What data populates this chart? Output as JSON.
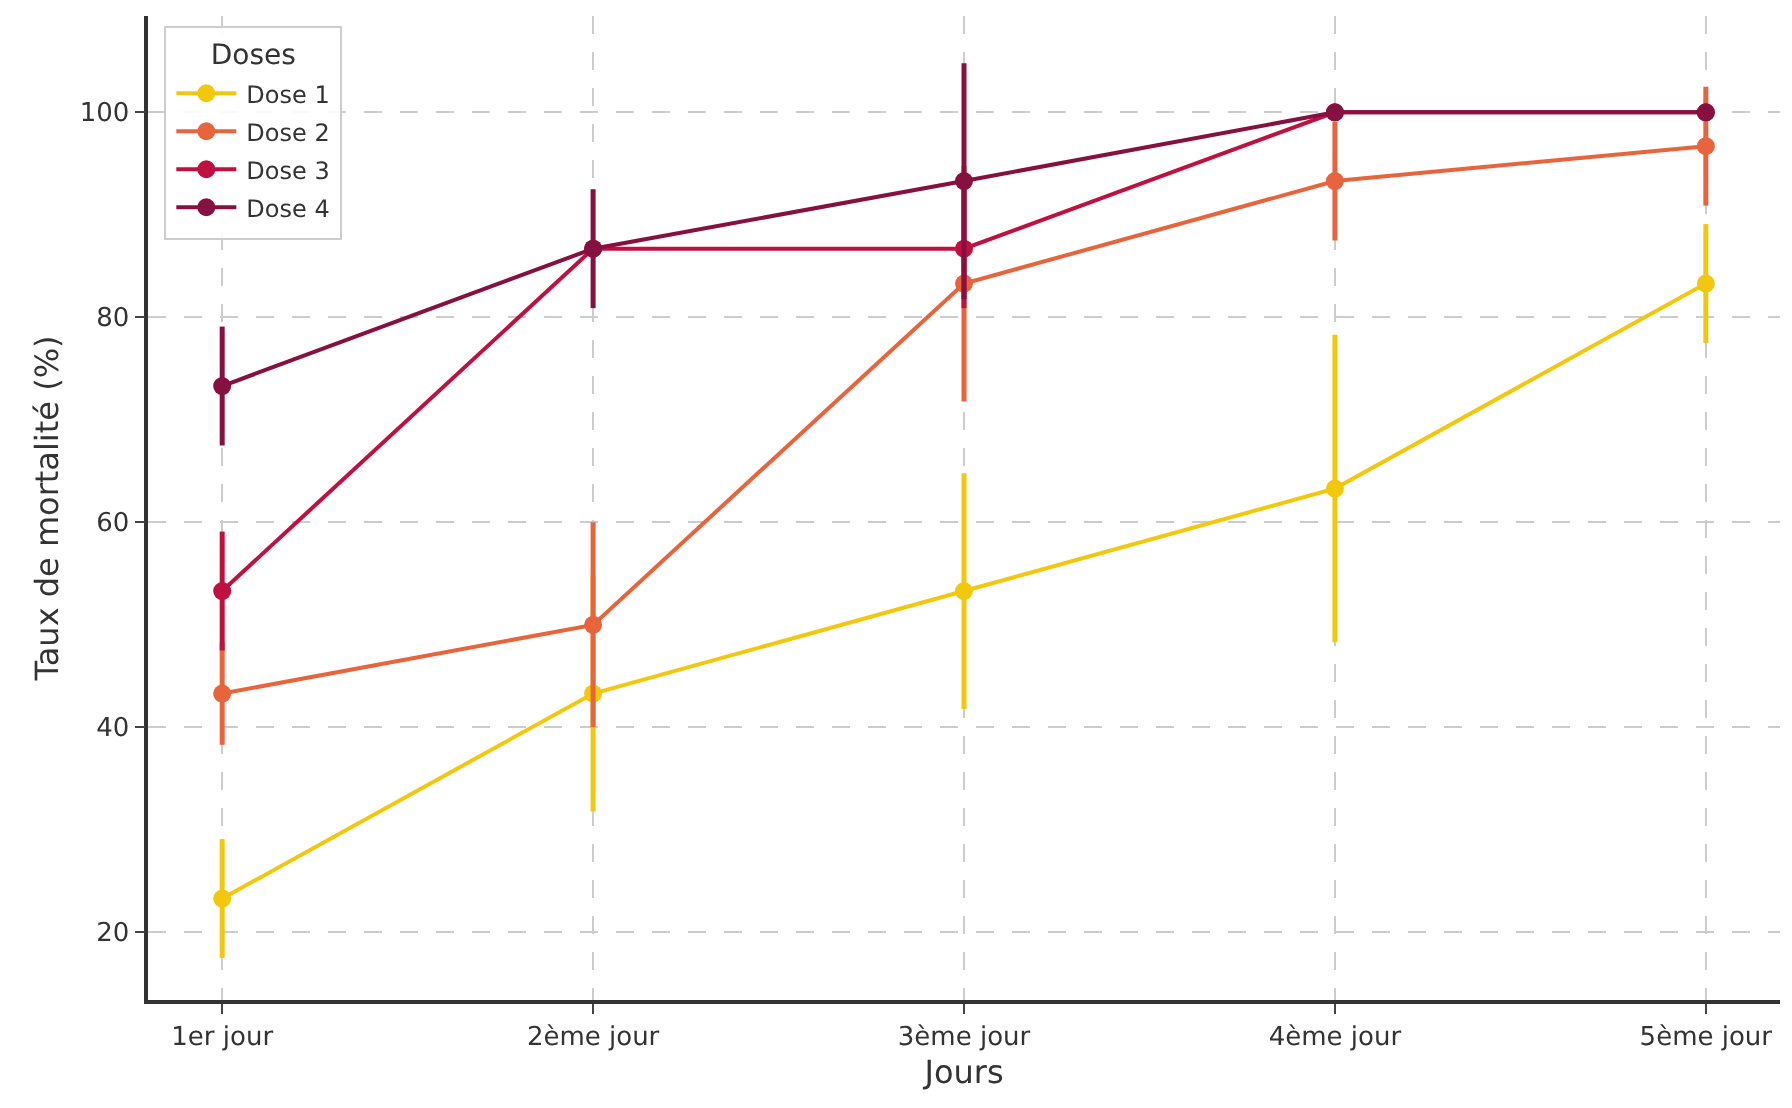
{
  "chart_data": {
    "type": "line",
    "xlabel": "Jours",
    "ylabel": "Taux de mortalité (%)",
    "legend_title": "Doses",
    "categories": [
      "1er jour",
      "2ème jour",
      "3ème jour",
      "4ème jour",
      "5ème jour"
    ],
    "series": [
      {
        "name": "Dose 1",
        "color": "#f2c80f",
        "values": [
          23.3,
          43.3,
          53.3,
          63.3,
          83.3
        ],
        "errors": [
          5.8,
          11.5,
          11.5,
          15,
          5.8
        ]
      },
      {
        "name": "Dose 2",
        "color": "#e8643c",
        "values": [
          43.3,
          50,
          83.3,
          93.3,
          96.7
        ],
        "errors": [
          5,
          10,
          11.5,
          5.8,
          5.8
        ]
      },
      {
        "name": "Dose 3",
        "color": "#c0103f",
        "values": [
          53.3,
          86.7,
          86.7,
          100,
          100
        ],
        "errors": [
          5.8,
          null,
          5.8,
          null,
          null
        ]
      },
      {
        "name": "Dose 4",
        "color": "#86103f",
        "values": [
          73.3,
          86.7,
          93.3,
          100,
          100
        ],
        "errors": [
          5.8,
          5.8,
          11.5,
          null,
          null
        ]
      }
    ],
    "ylim": [
      13.4,
      109.4
    ],
    "yticks": [
      20,
      40,
      60,
      80,
      100
    ],
    "grid": true,
    "legend": "top left",
    "marker": "circle",
    "line_style": "solid"
  }
}
